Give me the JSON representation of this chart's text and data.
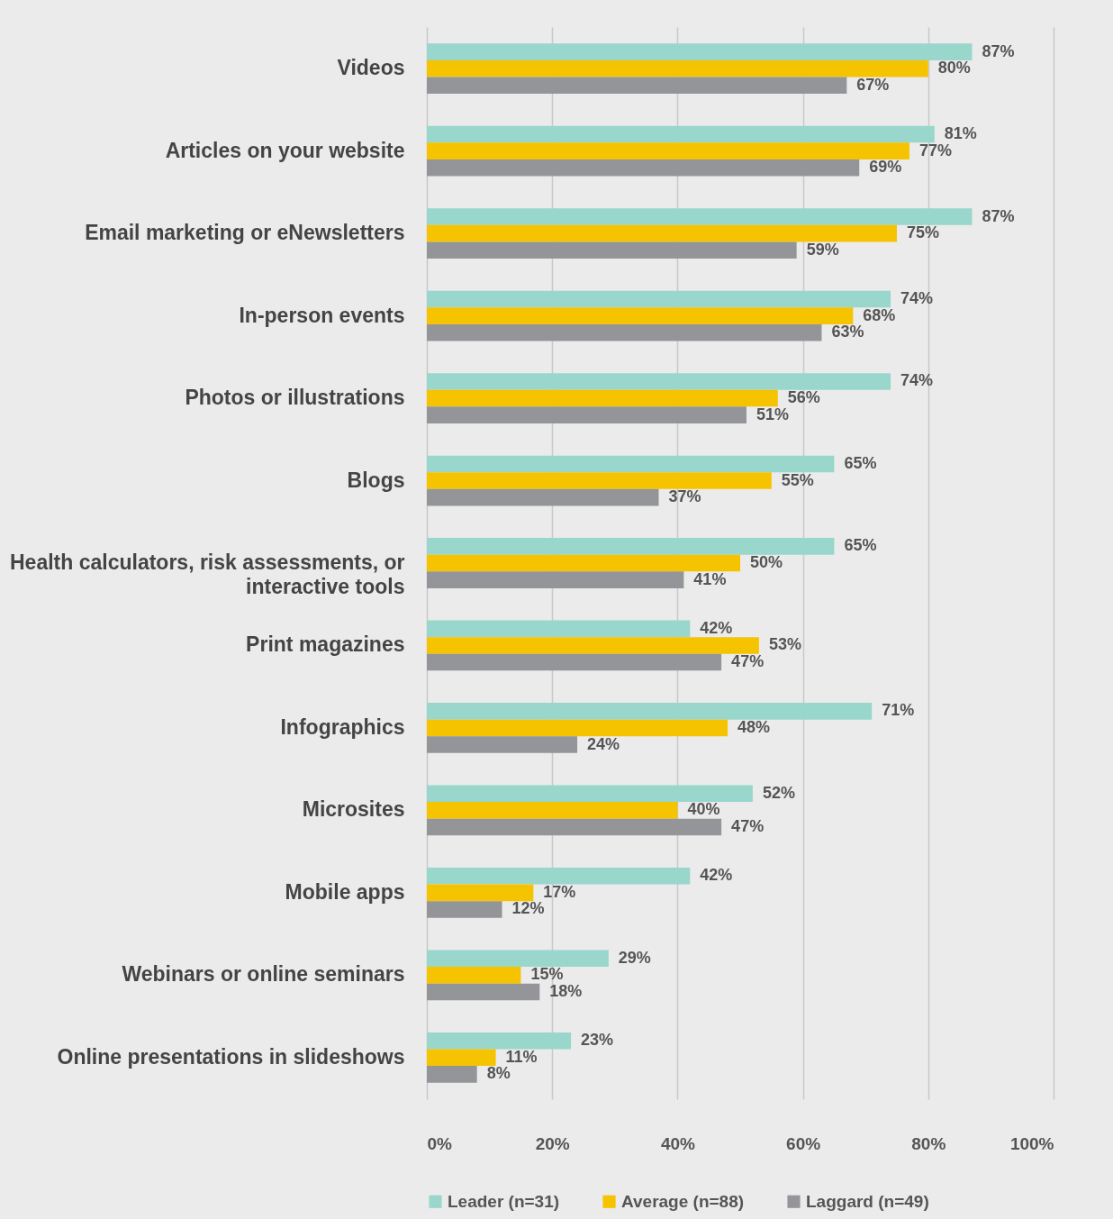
{
  "chart_data": {
    "type": "bar",
    "orientation": "horizontal",
    "categories": [
      "Videos",
      "Articles on your website",
      "Email marketing or eNewsletters",
      "In-person events",
      "Photos or illustrations",
      "Blogs",
      "Health calculators, risk assessments, or\ninteractive tools",
      "Print magazines",
      "Infographics",
      "Microsites",
      "Mobile apps",
      "Webinars or online seminars",
      "Online presentations in slideshows"
    ],
    "series": [
      {
        "name": "Leader (n=31)",
        "color": "#99d6cb",
        "values": [
          87,
          81,
          87,
          74,
          74,
          65,
          65,
          42,
          71,
          52,
          42,
          29,
          23
        ],
        "value_labels": [
          "87%",
          "81%",
          "87%",
          "74%",
          "74%",
          "65%",
          "65%",
          "42%",
          "71%",
          "52%",
          "42%",
          "29%",
          "23%"
        ]
      },
      {
        "name": "Average (n=88)",
        "color": "#f5c300",
        "values": [
          80,
          77,
          75,
          68,
          56,
          55,
          50,
          53,
          48,
          40,
          17,
          15,
          11
        ],
        "value_labels": [
          "80%",
          "77%",
          "75%",
          "68%",
          "56%",
          "55%",
          "50%",
          "53%",
          "48%",
          "40%",
          "17%",
          "15%",
          "11%"
        ]
      },
      {
        "name": "Laggard (n=49)",
        "color": "#939598",
        "values": [
          67,
          69,
          59,
          63,
          51,
          37,
          41,
          47,
          24,
          47,
          12,
          18,
          8
        ],
        "value_labels": [
          "67%",
          "69%",
          "59%",
          "63%",
          "51%",
          "37%",
          "41%",
          "47%",
          "24%",
          "47%",
          "12%",
          "18%",
          "8%"
        ]
      }
    ],
    "xlim": [
      0,
      100
    ],
    "xticks": [
      {
        "value": 0,
        "label": "0%"
      },
      {
        "value": 20,
        "label": "20%"
      },
      {
        "value": 40,
        "label": "40%"
      },
      {
        "value": 60,
        "label": "60%"
      },
      {
        "value": 80,
        "label": "80%"
      },
      {
        "value": 100,
        "label": "100%"
      }
    ],
    "grid": "x",
    "legend": "bottom"
  }
}
